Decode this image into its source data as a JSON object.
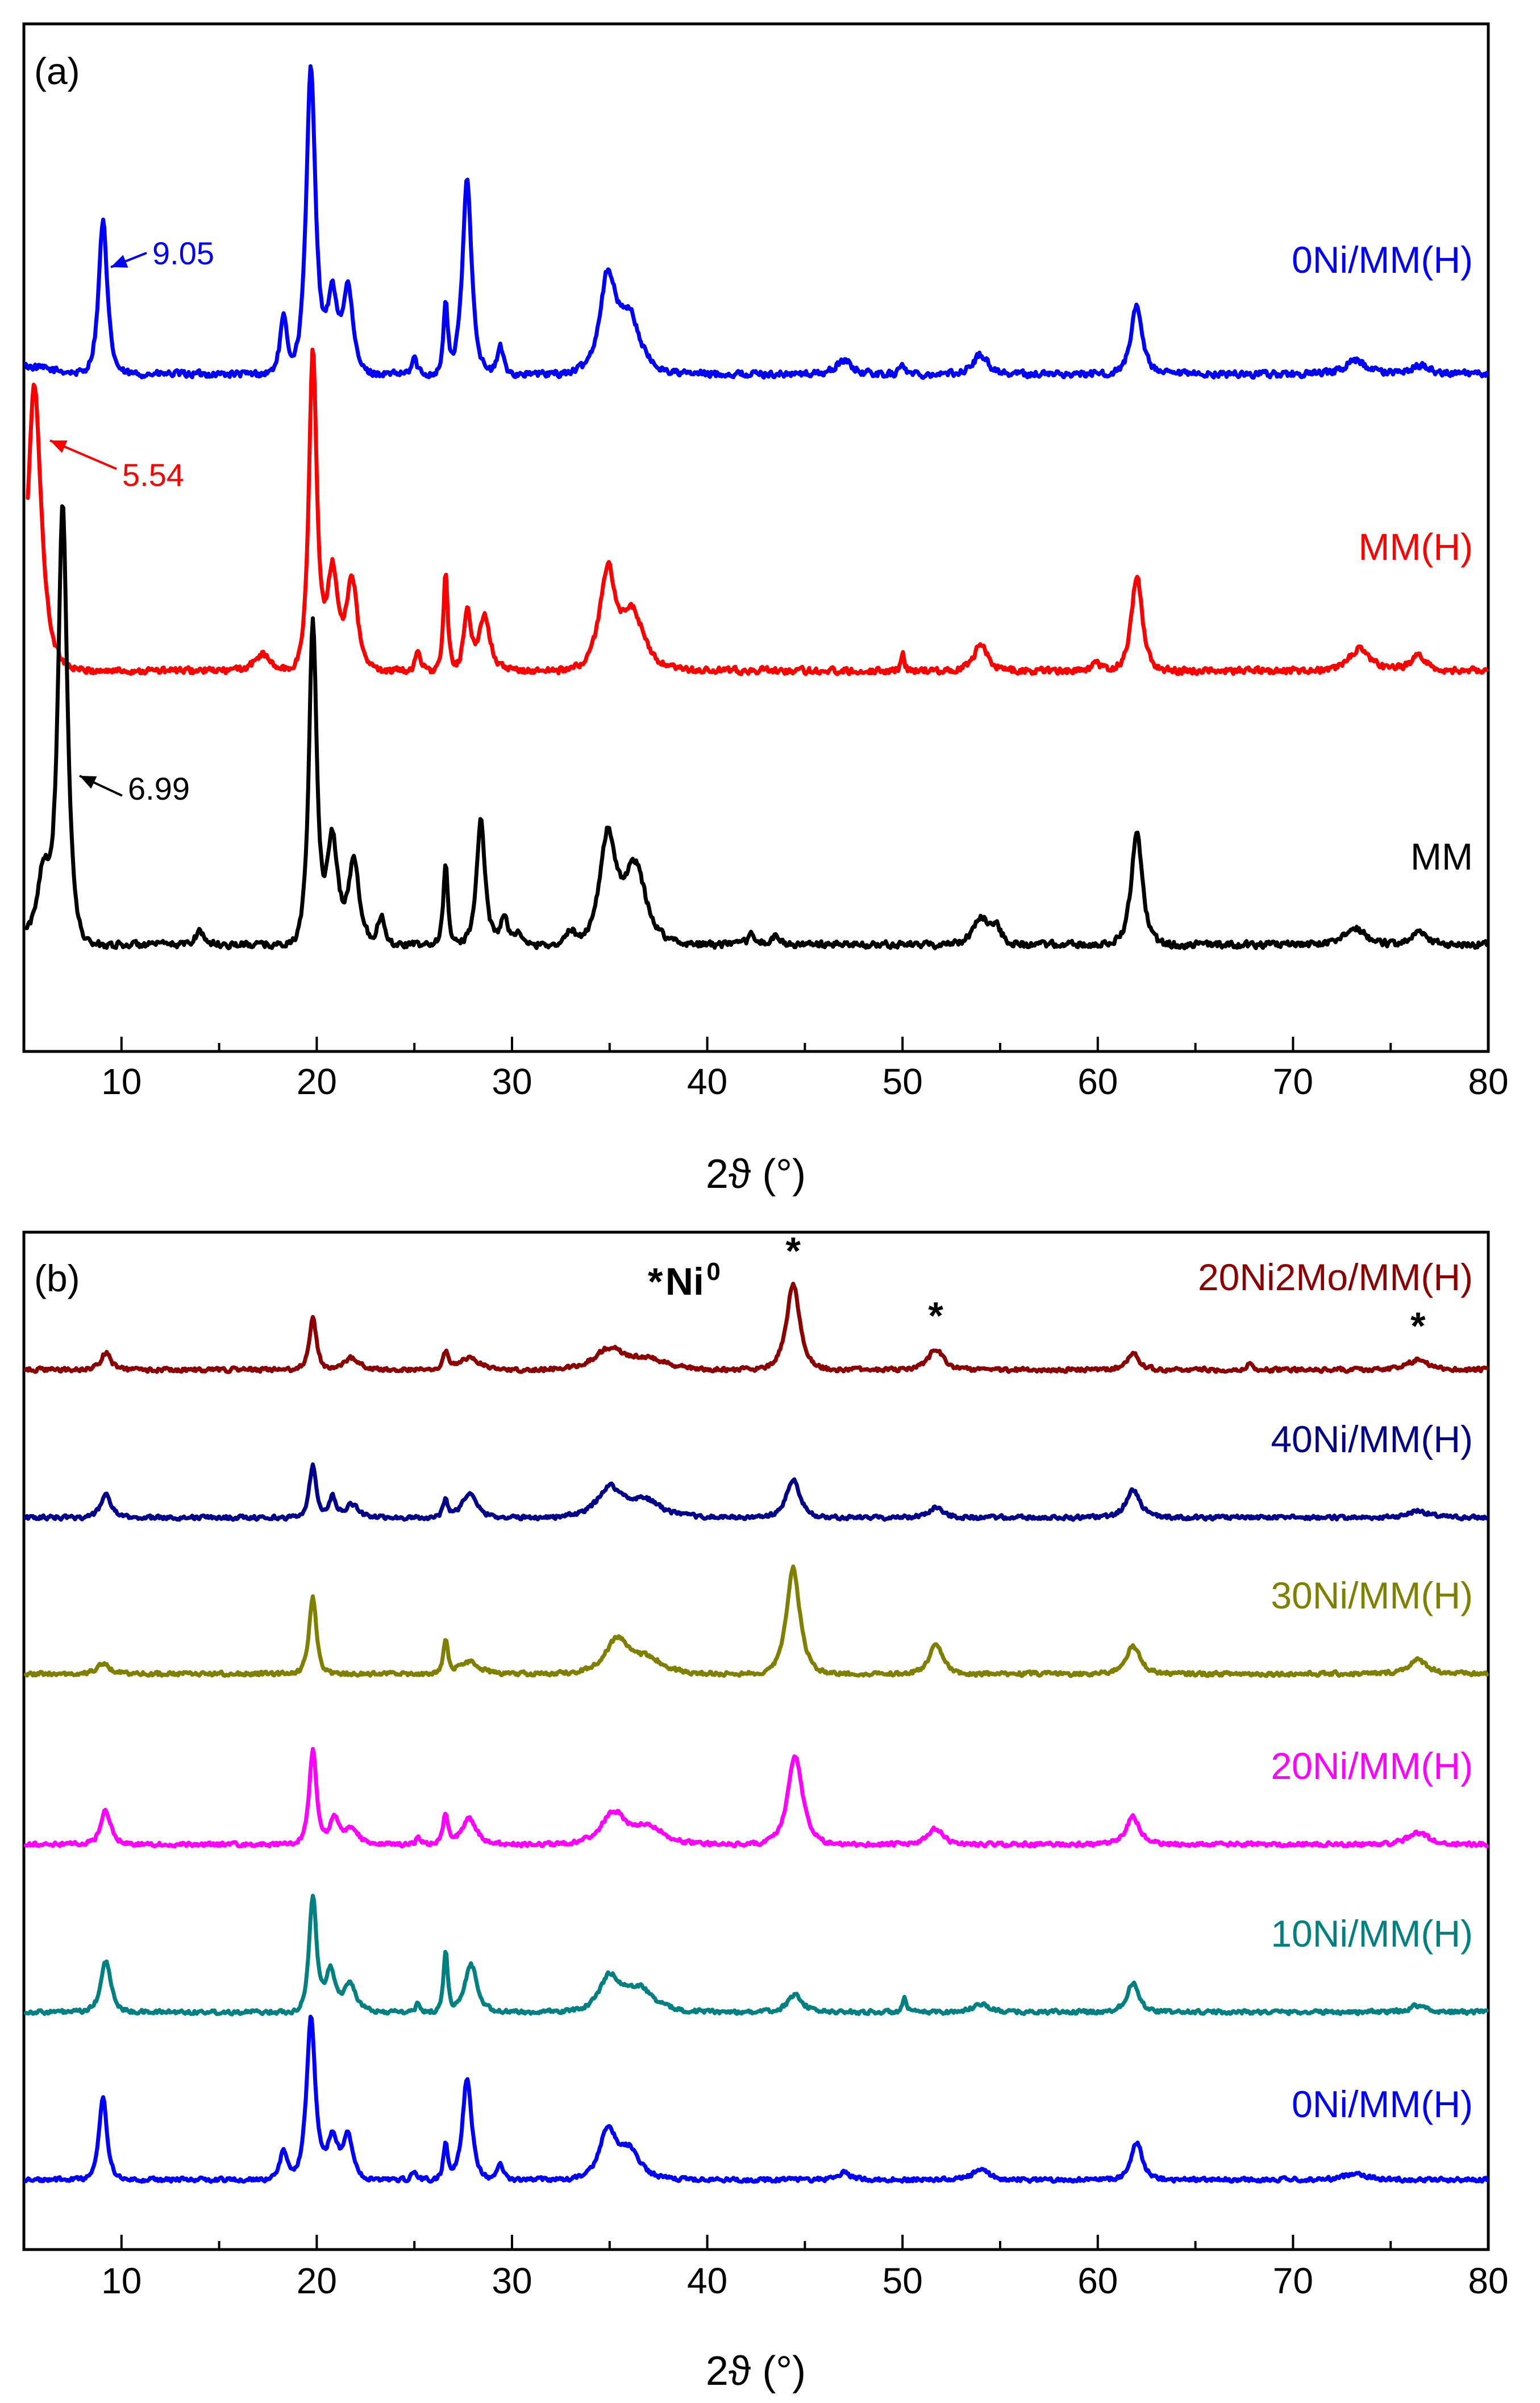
{
  "chart_data": [
    {
      "type": "line",
      "panel_label": "(a)",
      "xlabel": "2ϑ (°)",
      "xlim": [
        5,
        80
      ],
      "xticks": [
        10,
        20,
        30,
        40,
        50,
        60,
        70,
        80
      ],
      "y_axis": "stacked intensity (arbitrary units, no tick labels)",
      "series": [
        {
          "name": "0Ni/MM(H)",
          "color": "#0000ff",
          "offset": 2.2,
          "peaks": [
            [
              9.05,
              0.55,
              0.35
            ],
            [
              18.3,
              0.2,
              0.3
            ],
            [
              19.7,
              1.1,
              0.38
            ],
            [
              20.8,
              0.28,
              0.45
            ],
            [
              21.6,
              0.3,
              0.4
            ],
            [
              25.0,
              0.06,
              0.2
            ],
            [
              26.6,
              0.25,
              0.18
            ],
            [
              27.7,
              0.7,
              0.38
            ],
            [
              29.4,
              0.1,
              0.25
            ],
            [
              34.9,
              0.33,
              0.65
            ],
            [
              36.0,
              0.2,
              0.9
            ],
            [
              47.0,
              0.05,
              0.6
            ],
            [
              50.0,
              0.04,
              0.2
            ],
            [
              54.0,
              0.07,
              0.6
            ],
            [
              62.0,
              0.25,
              0.45
            ],
            [
              73.2,
              0.05,
              0.8
            ],
            [
              76.5,
              0.03,
              0.8
            ]
          ]
        },
        {
          "name": "MM(H)",
          "color": "#ff0000",
          "offset": 1.1,
          "peaks": [
            [
              5.54,
              1.0,
              0.55
            ],
            [
              17.2,
              0.06,
              0.6
            ],
            [
              19.8,
              1.15,
              0.32
            ],
            [
              20.8,
              0.36,
              0.45
            ],
            [
              21.8,
              0.33,
              0.45
            ],
            [
              25.2,
              0.08,
              0.2
            ],
            [
              26.6,
              0.35,
              0.18
            ],
            [
              27.7,
              0.22,
              0.28
            ],
            [
              28.6,
              0.2,
              0.45
            ],
            [
              34.9,
              0.35,
              0.65
            ],
            [
              36.2,
              0.2,
              0.9
            ],
            [
              50.0,
              0.06,
              0.15
            ],
            [
              54.0,
              0.09,
              0.6
            ],
            [
              59.9,
              0.04,
              0.3
            ],
            [
              62.0,
              0.34,
              0.45
            ],
            [
              73.4,
              0.08,
              0.8
            ],
            [
              76.4,
              0.05,
              0.7
            ]
          ]
        },
        {
          "name": "MM",
          "color": "#000000",
          "offset": 0.0,
          "peaks": [
            [
              6.99,
              1.55,
              0.38
            ],
            [
              6.0,
              0.25,
              0.5
            ],
            [
              14.0,
              0.05,
              0.35
            ],
            [
              19.8,
              1.15,
              0.32
            ],
            [
              20.8,
              0.38,
              0.45
            ],
            [
              21.9,
              0.3,
              0.45
            ],
            [
              23.3,
              0.1,
              0.3
            ],
            [
              26.6,
              0.28,
              0.2
            ],
            [
              28.4,
              0.45,
              0.35
            ],
            [
              29.6,
              0.1,
              0.35
            ],
            [
              30.3,
              0.05,
              0.2
            ],
            [
              33.0,
              0.05,
              0.3
            ],
            [
              34.9,
              0.38,
              0.65
            ],
            [
              36.3,
              0.28,
              0.9
            ],
            [
              42.3,
              0.04,
              0.3
            ],
            [
              43.5,
              0.03,
              0.3
            ],
            [
              54.0,
              0.1,
              0.6
            ],
            [
              54.8,
              0.06,
              0.4
            ],
            [
              62.0,
              0.4,
              0.45
            ],
            [
              73.2,
              0.06,
              0.8
            ],
            [
              76.5,
              0.05,
              0.6
            ]
          ]
        }
      ],
      "annotations": [
        {
          "text": "9.05",
          "x": 9.05,
          "series": "0Ni/MM(H)"
        },
        {
          "text": "5.54",
          "x": 5.54,
          "series": "MM(H)"
        },
        {
          "text": "6.99",
          "x": 6.99,
          "series": "MM"
        }
      ]
    },
    {
      "type": "line",
      "panel_label": "(b)",
      "xlabel": "2ϑ (°)",
      "xlim": [
        5,
        80
      ],
      "xticks": [
        10,
        20,
        30,
        40,
        50,
        60,
        70,
        80
      ],
      "y_axis": "stacked intensity (arbitrary units, no tick labels)",
      "legend_marker": {
        "symbol": "*",
        "text": "Ni",
        "sup": "0"
      },
      "marker_positions": [
        44.4,
        51.7,
        76.4
      ],
      "series": [
        {
          "name": "20Ni2Mo/MM(H)",
          "color": "#8b0000",
          "offset": 5.0,
          "peaks": [
            [
              9.2,
              0.1,
              0.4
            ],
            [
              19.8,
              0.3,
              0.3
            ],
            [
              21.8,
              0.07,
              0.6
            ],
            [
              26.6,
              0.1,
              0.2
            ],
            [
              27.8,
              0.07,
              0.8
            ],
            [
              35.0,
              0.12,
              1.2
            ],
            [
              37.0,
              0.06,
              1.5
            ],
            [
              44.4,
              0.5,
              0.55
            ],
            [
              51.7,
              0.12,
              0.6
            ],
            [
              61.8,
              0.1,
              0.5
            ],
            [
              67.8,
              0.04,
              0.2
            ],
            [
              76.4,
              0.06,
              0.8
            ]
          ]
        },
        {
          "name": "40Ni/MM(H)",
          "color": "#00008b",
          "offset": 4.0,
          "peaks": [
            [
              9.2,
              0.14,
              0.4
            ],
            [
              19.8,
              0.3,
              0.3
            ],
            [
              20.8,
              0.12,
              0.3
            ],
            [
              21.8,
              0.08,
              0.5
            ],
            [
              26.6,
              0.1,
              0.2
            ],
            [
              27.8,
              0.14,
              0.6
            ],
            [
              35.0,
              0.17,
              1.0
            ],
            [
              36.8,
              0.1,
              1.3
            ],
            [
              44.4,
              0.22,
              0.55
            ],
            [
              51.7,
              0.06,
              0.6
            ],
            [
              61.8,
              0.17,
              0.55
            ],
            [
              76.4,
              0.04,
              0.8
            ]
          ]
        },
        {
          "name": "30Ni/MM(H)",
          "color": "#808000",
          "offset": 3.0,
          "peaks": [
            [
              9.1,
              0.06,
              0.5
            ],
            [
              19.8,
              0.45,
              0.3
            ],
            [
              26.6,
              0.18,
              0.2
            ],
            [
              27.8,
              0.07,
              0.8
            ],
            [
              35.4,
              0.2,
              1.0
            ],
            [
              37.0,
              0.08,
              1.2
            ],
            [
              44.4,
              0.62,
              0.55
            ],
            [
              51.7,
              0.17,
              0.55
            ],
            [
              61.8,
              0.16,
              0.6
            ],
            [
              76.4,
              0.08,
              0.8
            ]
          ]
        },
        {
          "name": "20Ni/MM(H)",
          "color": "#ff00ff",
          "offset": 2.0,
          "peaks": [
            [
              9.2,
              0.2,
              0.4
            ],
            [
              19.8,
              0.55,
              0.3
            ],
            [
              20.9,
              0.15,
              0.4
            ],
            [
              21.8,
              0.1,
              0.5
            ],
            [
              25.2,
              0.04,
              0.2
            ],
            [
              26.6,
              0.18,
              0.2
            ],
            [
              27.8,
              0.15,
              0.6
            ],
            [
              35.2,
              0.18,
              1.0
            ],
            [
              37.0,
              0.1,
              1.2
            ],
            [
              44.5,
              0.52,
              0.6
            ],
            [
              51.7,
              0.09,
              0.6
            ],
            [
              61.8,
              0.16,
              0.55
            ],
            [
              76.4,
              0.07,
              0.8
            ]
          ]
        },
        {
          "name": "10Ni/MM(H)",
          "color": "#008080",
          "offset": 1.0,
          "peaks": [
            [
              9.2,
              0.3,
              0.4
            ],
            [
              19.8,
              0.68,
              0.3
            ],
            [
              20.7,
              0.25,
              0.4
            ],
            [
              21.7,
              0.17,
              0.5
            ],
            [
              25.2,
              0.05,
              0.2
            ],
            [
              26.6,
              0.35,
              0.18
            ],
            [
              27.9,
              0.28,
              0.5
            ],
            [
              35.0,
              0.2,
              0.8
            ],
            [
              36.5,
              0.14,
              1.2
            ],
            [
              44.5,
              0.1,
              0.6
            ],
            [
              50.1,
              0.08,
              0.15
            ],
            [
              54.0,
              0.05,
              0.6
            ],
            [
              61.8,
              0.17,
              0.5
            ],
            [
              76.4,
              0.04,
              0.6
            ]
          ]
        },
        {
          "name": "0Ni/MM(H)",
          "color": "#0000ff",
          "offset": 0.0,
          "peaks": [
            [
              9.05,
              0.48,
              0.33
            ],
            [
              18.3,
              0.18,
              0.3
            ],
            [
              19.7,
              0.95,
              0.36
            ],
            [
              20.8,
              0.25,
              0.45
            ],
            [
              21.6,
              0.25,
              0.4
            ],
            [
              25.0,
              0.05,
              0.2
            ],
            [
              26.6,
              0.22,
              0.18
            ],
            [
              27.7,
              0.6,
              0.38
            ],
            [
              29.4,
              0.09,
              0.25
            ],
            [
              34.9,
              0.28,
              0.65
            ],
            [
              36.0,
              0.17,
              0.9
            ],
            [
              47.0,
              0.04,
              0.6
            ],
            [
              54.0,
              0.06,
              0.6
            ],
            [
              62.0,
              0.22,
              0.45
            ],
            [
              73.2,
              0.04,
              0.8
            ]
          ]
        }
      ]
    }
  ]
}
